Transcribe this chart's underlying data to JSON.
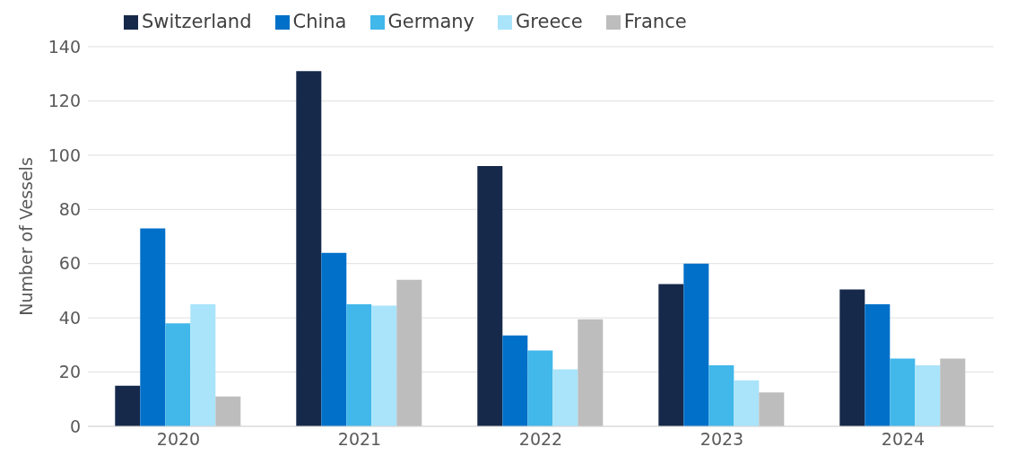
{
  "chart_data": {
    "type": "bar",
    "ylabel": "Number of Vessels",
    "categories": [
      "2020",
      "2021",
      "2022",
      "2023",
      "2024"
    ],
    "series": [
      {
        "name": "Switzerland",
        "color": "#16294a",
        "values": [
          15,
          131,
          96,
          52.5,
          50.5
        ]
      },
      {
        "name": "China",
        "color": "#0070c9",
        "values": [
          73,
          64,
          33.5,
          60,
          45
        ]
      },
      {
        "name": "Germany",
        "color": "#41b7ea",
        "values": [
          38,
          45,
          28,
          22.5,
          25
        ]
      },
      {
        "name": "Greece",
        "color": "#a9e4fb",
        "values": [
          45,
          44.5,
          21,
          17,
          22.5
        ]
      },
      {
        "name": "France",
        "color": "#bdbdbd",
        "values": [
          11,
          54,
          39.5,
          12.5,
          25
        ]
      }
    ],
    "ylim": [
      0,
      140
    ],
    "yticks": [
      0,
      20,
      40,
      60,
      80,
      100,
      120,
      140
    ],
    "grid": "y",
    "legend": "top"
  }
}
